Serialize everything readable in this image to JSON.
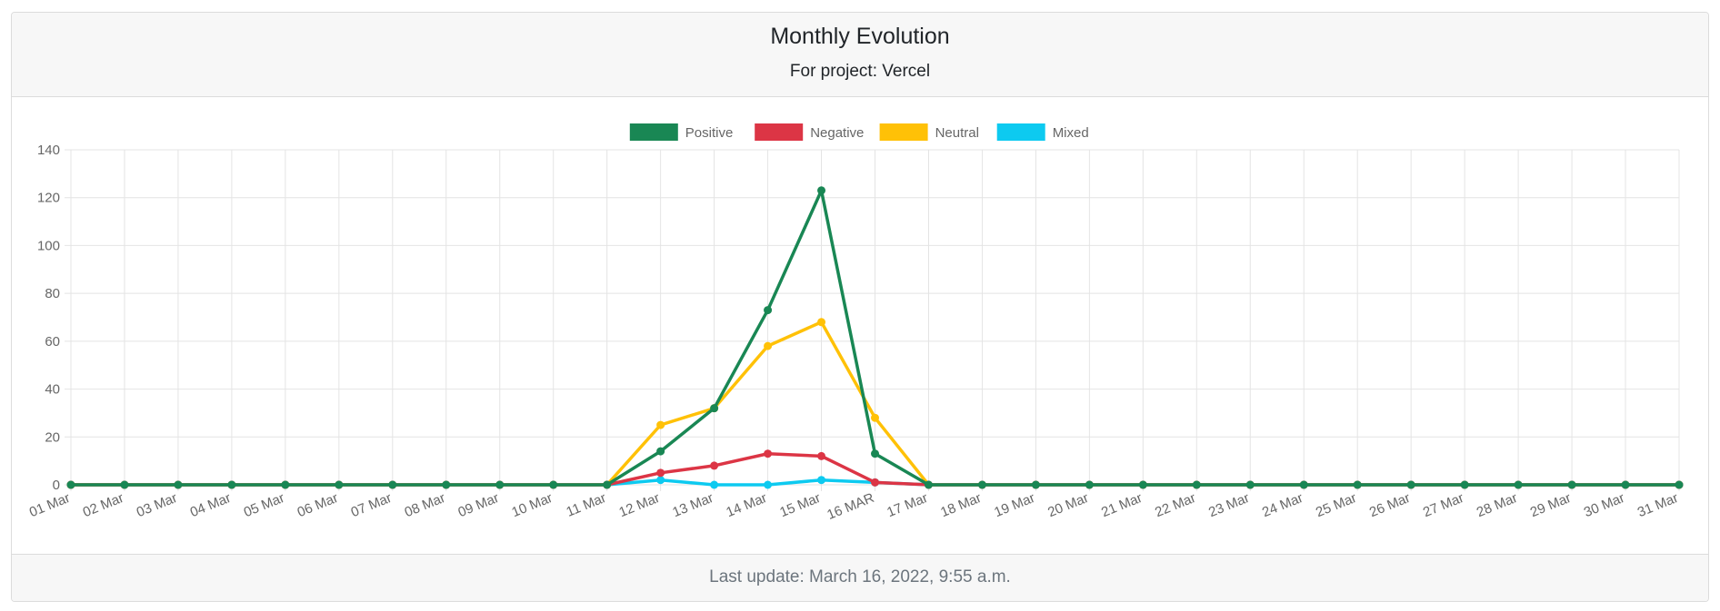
{
  "card": {
    "title": "Monthly Evolution",
    "subtitle": "For project: Vercel",
    "footer": "Last update: March 16, 2022, 9:55 a.m."
  },
  "chart_data": {
    "type": "line",
    "title": "",
    "xlabel": "",
    "ylabel": "",
    "ylim": [
      0,
      140
    ],
    "yticks": [
      0,
      20,
      40,
      60,
      80,
      100,
      120,
      140
    ],
    "grid": true,
    "legend_position": "top-center",
    "categories": [
      "01 Mar",
      "02 Mar",
      "03 Mar",
      "04 Mar",
      "05 Mar",
      "06 Mar",
      "07 Mar",
      "08 Mar",
      "09 Mar",
      "10 Mar",
      "11 Mar",
      "12 Mar",
      "13 Mar",
      "14 Mar",
      "15 Mar",
      "16 MAR",
      "17 Mar",
      "18 Mar",
      "19 Mar",
      "20 Mar",
      "21 Mar",
      "22 Mar",
      "23 Mar",
      "24 Mar",
      "25 Mar",
      "26 Mar",
      "27 Mar",
      "28 Mar",
      "29 Mar",
      "30 Mar",
      "31 Mar"
    ],
    "series": [
      {
        "name": "Positive",
        "color": "#198754",
        "values": [
          0,
          0,
          0,
          0,
          0,
          0,
          0,
          0,
          0,
          0,
          0,
          14,
          32,
          73,
          123,
          13,
          0,
          0,
          0,
          0,
          0,
          0,
          0,
          0,
          0,
          0,
          0,
          0,
          0,
          0,
          0
        ]
      },
      {
        "name": "Negative",
        "color": "#dc3545",
        "values": [
          0,
          0,
          0,
          0,
          0,
          0,
          0,
          0,
          0,
          0,
          0,
          5,
          8,
          13,
          12,
          1,
          0,
          0,
          0,
          0,
          0,
          0,
          0,
          0,
          0,
          0,
          0,
          0,
          0,
          0,
          0
        ]
      },
      {
        "name": "Neutral",
        "color": "#ffc107",
        "values": [
          0,
          0,
          0,
          0,
          0,
          0,
          0,
          0,
          0,
          0,
          0,
          25,
          32,
          58,
          68,
          28,
          0,
          0,
          0,
          0,
          0,
          0,
          0,
          0,
          0,
          0,
          0,
          0,
          0,
          0,
          0
        ]
      },
      {
        "name": "Mixed",
        "color": "#0dcaf0",
        "values": [
          0,
          0,
          0,
          0,
          0,
          0,
          0,
          0,
          0,
          0,
          0,
          2,
          0,
          0,
          2,
          1,
          0,
          0,
          0,
          0,
          0,
          0,
          0,
          0,
          0,
          0,
          0,
          0,
          0,
          0,
          0
        ]
      }
    ]
  }
}
